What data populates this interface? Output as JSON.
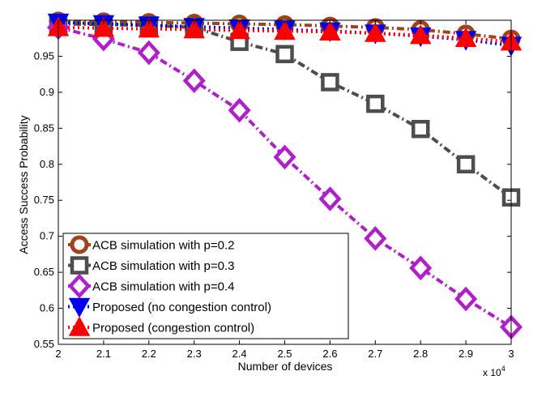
{
  "chart_data": {
    "type": "line",
    "title": "",
    "xlabel": "Number of devices",
    "ylabel": "Access Success Probability",
    "x_exponent": {
      "base": "x 10",
      "power": "4"
    },
    "xlim": [
      2,
      3
    ],
    "ylim": [
      0.55,
      1.0
    ],
    "x_ticks": [
      2,
      2.1,
      2.2,
      2.3,
      2.4,
      2.5,
      2.6,
      2.7,
      2.8,
      2.9,
      3
    ],
    "x_tick_labels": [
      "2",
      "2.1",
      "2.2",
      "2.3",
      "2.4",
      "2.5",
      "2.6",
      "2.7",
      "2.8",
      "2.9",
      "3"
    ],
    "y_ticks": [
      0.55,
      0.6,
      0.65,
      0.7,
      0.75,
      0.8,
      0.85,
      0.9,
      0.95
    ],
    "y_tick_labels": [
      "0.55",
      "0.6",
      "0.65",
      "0.7",
      "0.75",
      "0.8",
      "0.85",
      "0.9",
      "0.95"
    ],
    "grid": false,
    "legend_position": "bottom-left",
    "x": [
      2,
      2.1,
      2.2,
      2.3,
      2.4,
      2.5,
      2.6,
      2.7,
      2.8,
      2.9,
      3
    ],
    "series": [
      {
        "name": "ACB simulation with p=0.2",
        "color": "#a0421c",
        "marker": "circle",
        "line_style": "dash-dot",
        "values": [
          0.999,
          0.998,
          0.997,
          0.996,
          0.995,
          0.994,
          0.992,
          0.99,
          0.987,
          0.981,
          0.974
        ]
      },
      {
        "name": "ACB simulation with p=0.3",
        "color": "#4d4d4d",
        "marker": "square",
        "line_style": "dash-dot",
        "values": [
          0.995,
          0.994,
          0.993,
          0.99,
          0.97,
          0.953,
          0.914,
          0.884,
          0.849,
          0.8,
          0.754
        ]
      },
      {
        "name": "ACB simulation with p=0.4",
        "color": "#b020c8",
        "marker": "diamond",
        "line_style": "dash-dot",
        "values": [
          0.99,
          0.974,
          0.955,
          0.916,
          0.875,
          0.81,
          0.752,
          0.697,
          0.656,
          0.613,
          0.574
        ]
      },
      {
        "name": "Proposed (no congestion control)",
        "color": "#0000ee",
        "marker": "triangle-down",
        "line_style": "dotted",
        "values": [
          0.997,
          0.995,
          0.993,
          0.991,
          0.989,
          0.987,
          0.985,
          0.982,
          0.978,
          0.973,
          0.965
        ]
      },
      {
        "name": "Proposed (congestion control)",
        "color": "#ff0000",
        "marker": "triangle-up",
        "line_style": "dotted",
        "values": [
          0.99,
          0.989,
          0.988,
          0.987,
          0.986,
          0.985,
          0.984,
          0.982,
          0.979,
          0.975,
          0.97
        ]
      }
    ]
  }
}
